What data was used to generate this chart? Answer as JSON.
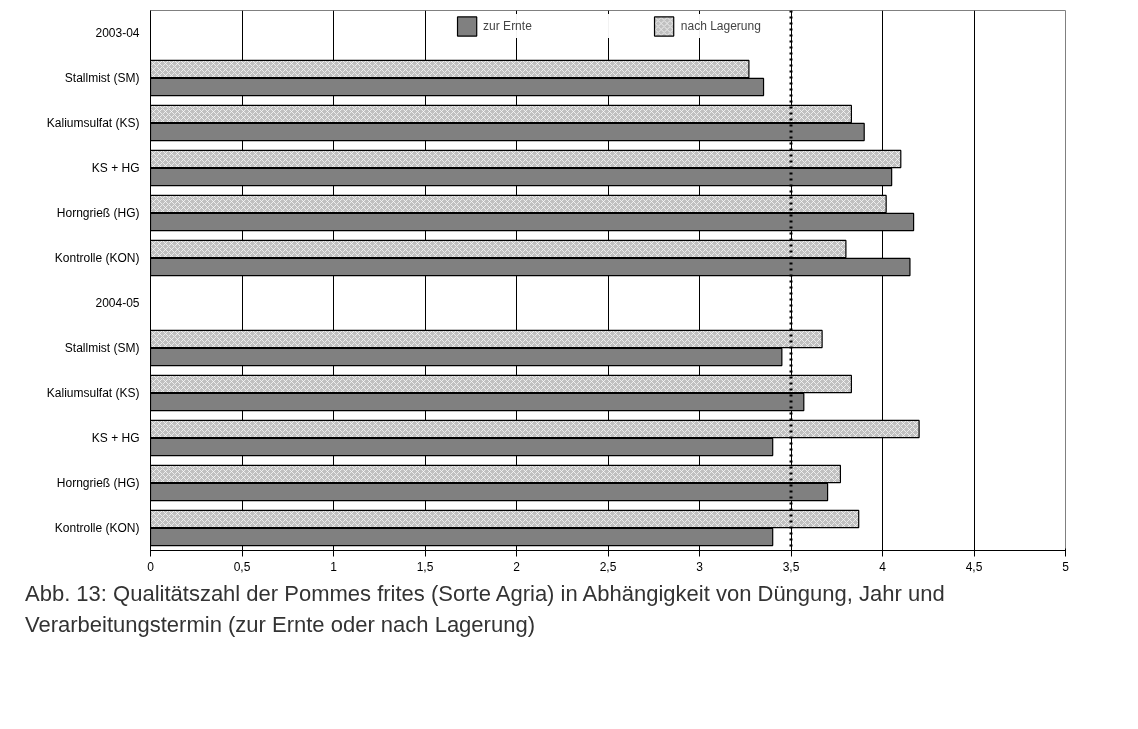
{
  "chart_data": {
    "type": "bar",
    "orientation": "horizontal",
    "title": "Abb. 13: Qualitätszahl der Pommes frites (Sorte Agria) in Abhängigkeit von Düngung, Jahr und Verarbeitungstermin (zur Ernte oder nach Lagerung)",
    "categories": [
      "2003-04",
      "Stallmist (SM)",
      "Kaliumsulfat (KS)",
      "KS + HG",
      "Horngrieß (HG)",
      "Kontrolle (KON)",
      "2004-05",
      "Stallmist (SM)",
      "Kaliumsulfat (KS)",
      "KS + HG",
      "Horngrieß (HG)",
      "Kontrolle (KON)"
    ],
    "series": [
      {
        "name": "zur Ernte",
        "color": "#808080",
        "values": [
          null,
          3.35,
          3.9,
          4.05,
          4.17,
          4.15,
          null,
          3.45,
          3.57,
          3.4,
          3.7,
          3.4
        ]
      },
      {
        "name": "nach Lagerung",
        "color": "#c0c0c0",
        "values": [
          null,
          3.27,
          3.83,
          4.1,
          4.02,
          3.8,
          null,
          3.67,
          3.83,
          4.2,
          3.77,
          3.87
        ]
      }
    ],
    "xlim": [
      0,
      5
    ],
    "xticks": [
      0,
      {
        "value": 0.5,
        "label": "0,5"
      },
      1,
      {
        "value": 1.5,
        "label": "1,5"
      },
      2,
      {
        "value": 2.5,
        "label": "2,5"
      },
      3,
      {
        "value": 3.5,
        "label": "3,5"
      },
      4,
      {
        "value": 4.5,
        "label": "4,5"
      },
      5
    ],
    "ref_lines": [
      {
        "axis": "x",
        "value": 3.5,
        "color": "#000000",
        "line_style": "dotted"
      }
    ],
    "grid": "x",
    "legend": "top"
  }
}
